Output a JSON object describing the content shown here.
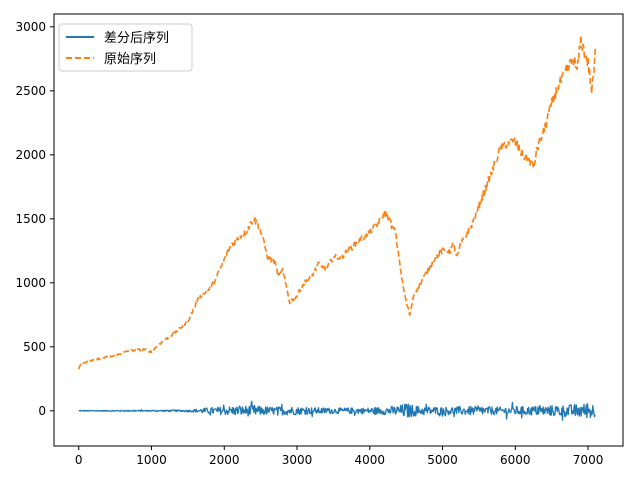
{
  "chart_data": {
    "type": "line",
    "title": "",
    "xlabel": "",
    "ylabel": "",
    "xlim": [
      -340,
      7480
    ],
    "ylim": [
      -275,
      3100
    ],
    "xticks": [
      0,
      1000,
      2000,
      3000,
      4000,
      5000,
      6000,
      7000
    ],
    "yticks": [
      0,
      500,
      1000,
      1500,
      2000,
      2500,
      3000
    ],
    "grid": false,
    "legend": {
      "position": "top-left",
      "entries": [
        "差分后序列",
        "原始序列"
      ]
    },
    "series": [
      {
        "name": "差分后序列",
        "color": "#1f77b4",
        "style": "solid",
        "envelope_x": [
          0,
          500,
          1000,
          1500,
          1600,
          1700,
          1900,
          2100,
          2300,
          2400,
          2500,
          2700,
          2900,
          3000,
          3500,
          4000,
          4200,
          4400,
          4500,
          4600,
          4700,
          5000,
          5400,
          5800,
          6000,
          6200,
          6400,
          6600,
          6800,
          6900,
          7000,
          7050,
          7100
        ],
        "envelope_amplitude": [
          3,
          4,
          5,
          8,
          12,
          20,
          30,
          35,
          40,
          45,
          35,
          30,
          35,
          30,
          22,
          25,
          30,
          40,
          60,
          45,
          35,
          30,
          35,
          30,
          35,
          35,
          40,
          45,
          50,
          55,
          60,
          60,
          55
        ]
      },
      {
        "name": "原始序列",
        "color": "#ff7f0e",
        "style": "dashed",
        "x": [
          0,
          30,
          100,
          300,
          500,
          700,
          900,
          1000,
          1100,
          1300,
          1500,
          1650,
          1800,
          1900,
          2000,
          2100,
          2200,
          2300,
          2350,
          2400,
          2450,
          2500,
          2550,
          2600,
          2700,
          2750,
          2800,
          2900,
          3000,
          3100,
          3200,
          3300,
          3400,
          3500,
          3600,
          3700,
          3800,
          3900,
          4000,
          4100,
          4200,
          4250,
          4300,
          4350,
          4400,
          4450,
          4500,
          4550,
          4600,
          4700,
          4800,
          4900,
          5000,
          5100,
          5150,
          5200,
          5250,
          5300,
          5400,
          5500,
          5600,
          5700,
          5800,
          5900,
          6000,
          6100,
          6200,
          6250,
          6300,
          6400,
          6500,
          6600,
          6700,
          6800,
          6850,
          6900,
          6950,
          7000,
          7050,
          7080,
          7100
        ],
        "y": [
          330,
          375,
          380,
          410,
          430,
          470,
          480,
          460,
          520,
          600,
          700,
          880,
          950,
          1050,
          1180,
          1300,
          1350,
          1400,
          1450,
          1500,
          1470,
          1400,
          1300,
          1200,
          1150,
          1050,
          1100,
          850,
          900,
          1000,
          1050,
          1150,
          1100,
          1200,
          1200,
          1250,
          1300,
          1350,
          1400,
          1450,
          1550,
          1520,
          1450,
          1400,
          1200,
          1000,
          850,
          750,
          900,
          1000,
          1100,
          1200,
          1250,
          1250,
          1300,
          1200,
          1300,
          1350,
          1450,
          1600,
          1750,
          1900,
          2050,
          2100,
          2100,
          2000,
          1950,
          1900,
          2050,
          2200,
          2400,
          2550,
          2650,
          2750,
          2650,
          2900,
          2800,
          2720,
          2500,
          2650,
          2800
        ]
      }
    ]
  }
}
